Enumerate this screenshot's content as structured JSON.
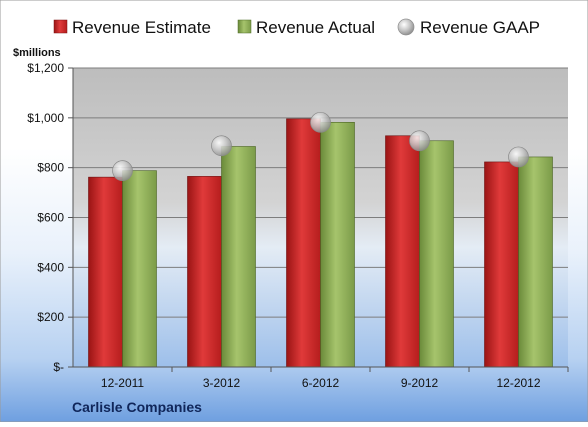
{
  "chart_data": {
    "type": "bar",
    "title": "",
    "company": "Carlisle Companies",
    "ylabel": "$millions",
    "categories": [
      "12-2011",
      "3-2012",
      "6-2012",
      "9-2012",
      "12-2012"
    ],
    "ylim": [
      0,
      1200
    ],
    "yticks": [
      {
        "value": 0,
        "label": "$-"
      },
      {
        "value": 200,
        "label": "$200"
      },
      {
        "value": 400,
        "label": "$400"
      },
      {
        "value": 600,
        "label": "$600"
      },
      {
        "value": 800,
        "label": "$800"
      },
      {
        "value": 1000,
        "label": "$1,000"
      },
      {
        "value": 1200,
        "label": "$1,200"
      }
    ],
    "grid": true,
    "legend_position": "top",
    "series": [
      {
        "name": "Revenue Estimate",
        "kind": "bar",
        "color": "#d42a2a",
        "values": [
          762,
          765,
          996,
          928,
          823
        ]
      },
      {
        "name": "Revenue Actual",
        "kind": "bar",
        "color": "#8fb05a",
        "values": [
          788,
          885,
          982,
          908,
          843
        ]
      },
      {
        "name": "Revenue GAAP",
        "kind": "marker",
        "color": "#b8b8b8",
        "values": [
          788,
          888,
          982,
          908,
          843
        ]
      }
    ]
  }
}
